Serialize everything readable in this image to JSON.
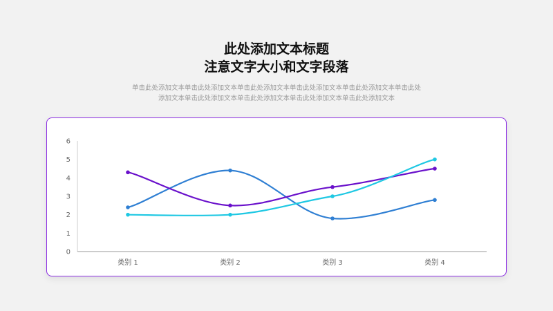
{
  "header": {
    "title_line1": "此处添加文本标题",
    "title_line2": "注意文字大小和文字段落",
    "subtitle_line1": "单击此处添加文本单击此处添加文本单击此处添加文本单击此处添加文本单击此处添加文本单击此处",
    "subtitle_line2": "添加文本单击此处添加文本单击此处添加文本单击此处添加文本单击此处添加文本"
  },
  "colors": {
    "card_border": "#8a2be2",
    "series": [
      "#2f7fd3",
      "#6a11cb",
      "#1fc8e3"
    ]
  },
  "chart_data": {
    "type": "line",
    "smooth": true,
    "categories": [
      "类别 1",
      "类别 2",
      "类别 3",
      "类别 4"
    ],
    "ylim": [
      0,
      6
    ],
    "yticks": [
      0,
      1,
      2,
      3,
      4,
      5,
      6
    ],
    "grid": false,
    "legend": "none",
    "series": [
      {
        "values": [
          2.4,
          4.4,
          1.8,
          2.8
        ]
      },
      {
        "values": [
          4.3,
          2.5,
          3.5,
          4.5
        ]
      },
      {
        "values": [
          2.0,
          2.0,
          3.0,
          5.0
        ]
      }
    ]
  }
}
